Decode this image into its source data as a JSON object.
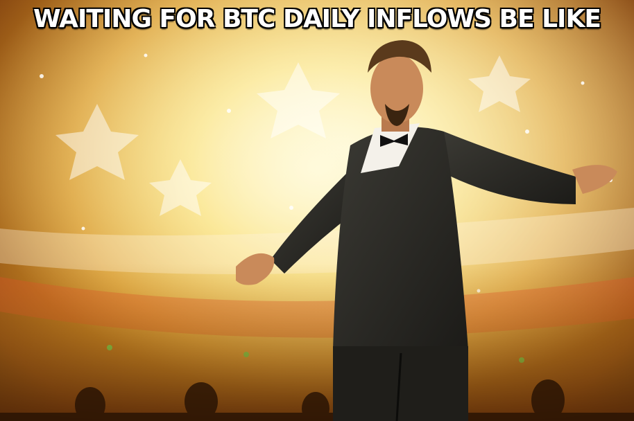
{
  "meme": {
    "caption": "WAITING FOR BTC DAILY INFLOWS BE LIKE"
  }
}
